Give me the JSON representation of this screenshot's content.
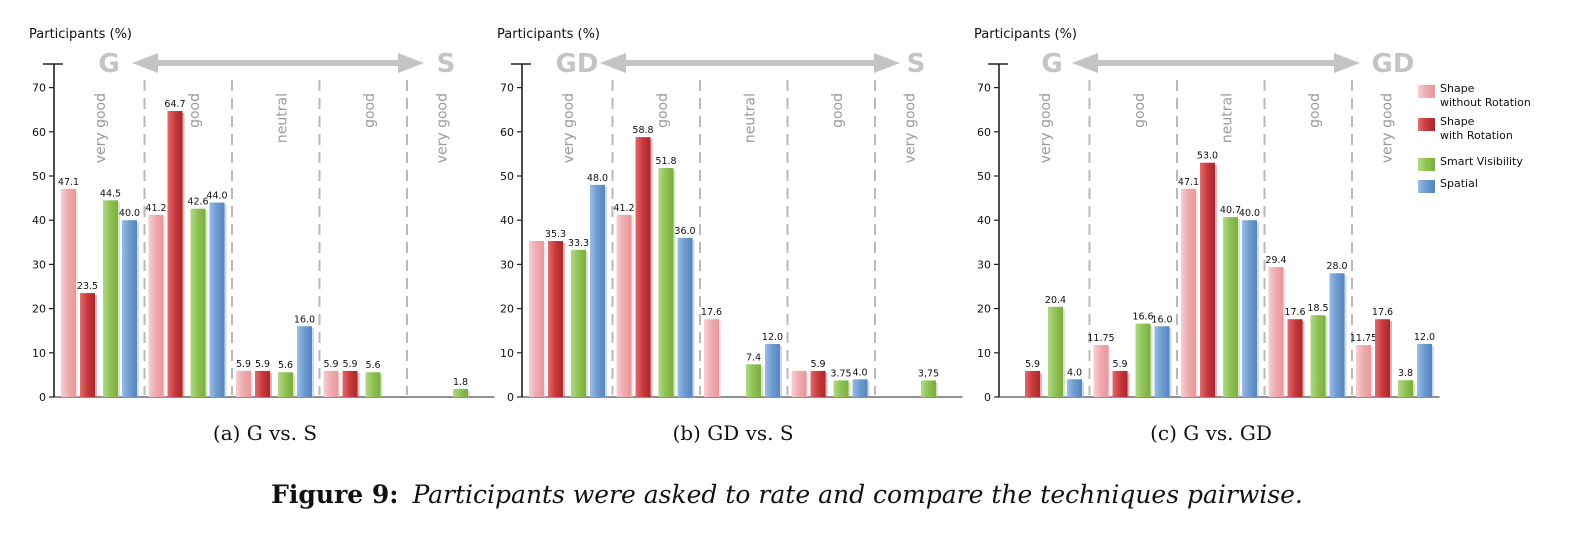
{
  "figure": {
    "caption_label": "Figure 9:",
    "caption_text": "Participants were asked to rate and compare the techniques pairwise."
  },
  "legend": {
    "placement": "right",
    "entries": [
      {
        "lines": [
          "Shape",
          "without Rotation"
        ],
        "series": 0
      },
      {
        "lines": [
          "Shape",
          "with Rotation"
        ],
        "series": 1
      },
      {
        "lines": [
          "Smart Visibility"
        ],
        "series": 2
      },
      {
        "lines": [
          "Spatial"
        ],
        "series": 3
      }
    ]
  },
  "colors": {
    "shape_without_rotation": "#eeaaaf",
    "shape_with_rotation": "#c8383c",
    "smart_visibility": "#8fc152",
    "spatial": "#6c9ad0",
    "grey_label": "#c4c4c4",
    "divider": "#b9b9b9"
  },
  "chart_data": [
    {
      "type": "bar",
      "subcaption": "(a)  G vs. S",
      "ylabel": "Participants (%)",
      "ylim": [
        0,
        75
      ],
      "yticks": [
        "0",
        "10",
        "20",
        "30",
        "40",
        "50",
        "60",
        "70"
      ],
      "arrow_left": "G",
      "arrow_right": "S",
      "categories": [
        "very good",
        "good",
        "neutral",
        "good",
        "very good"
      ],
      "series": [
        {
          "values": [
            47.1,
            41.2,
            5.9,
            5.9,
            null
          ],
          "labels": [
            "47.1",
            "41.2",
            "5.9",
            "5.9",
            ""
          ]
        },
        {
          "values": [
            23.5,
            64.7,
            5.9,
            5.9,
            null
          ],
          "labels": [
            "23.5",
            "64.7",
            "5.9",
            "5.9",
            ""
          ]
        },
        {
          "values": [
            44.5,
            42.6,
            5.6,
            5.6,
            1.8
          ],
          "labels": [
            "44.5",
            "42.6",
            "5.6",
            "5.6",
            "1.8"
          ]
        },
        {
          "values": [
            40.0,
            44.0,
            16.0,
            null,
            null
          ],
          "labels": [
            "40.0",
            "44.0",
            "16.0",
            "",
            ""
          ]
        }
      ]
    },
    {
      "type": "bar",
      "subcaption": "(b)  GD vs. S",
      "ylabel": "Participants (%)",
      "ylim": [
        0,
        75
      ],
      "yticks": [
        "0",
        "10",
        "20",
        "30",
        "40",
        "50",
        "60",
        "70"
      ],
      "arrow_left": "GD",
      "arrow_right": "S",
      "categories": [
        "very good",
        "good",
        "neutral",
        "good",
        "very good"
      ],
      "series": [
        {
          "values": [
            35.3,
            41.2,
            17.6,
            5.9,
            null
          ],
          "labels": [
            "",
            "41.2",
            "17.6",
            "",
            ""
          ]
        },
        {
          "values": [
            35.3,
            58.8,
            null,
            5.9,
            null
          ],
          "labels": [
            "35.3",
            "58.8",
            "",
            "5.9",
            ""
          ]
        },
        {
          "values": [
            33.3,
            51.8,
            7.4,
            3.75,
            3.75
          ],
          "labels": [
            "33.3",
            "51.8",
            "7.4",
            "3.75",
            "3,75"
          ]
        },
        {
          "values": [
            48.0,
            36.0,
            12.0,
            4.0,
            null
          ],
          "labels": [
            "48.0",
            "36.0",
            "12.0",
            "4.0",
            ""
          ]
        }
      ]
    },
    {
      "type": "bar",
      "subcaption": "(c)  G vs. GD",
      "ylabel": "Participants (%)",
      "ylim": [
        0,
        75
      ],
      "yticks": [
        "0",
        "10",
        "20",
        "30",
        "40",
        "50",
        "60",
        "70"
      ],
      "arrow_left": "G",
      "arrow_right": "GD",
      "categories": [
        "very good",
        "good",
        "neutral",
        "good",
        "very good"
      ],
      "series": [
        {
          "values": [
            null,
            11.75,
            47.1,
            29.4,
            11.75
          ],
          "labels": [
            "",
            "11.75",
            "47.1",
            "29.4",
            "11.75"
          ]
        },
        {
          "values": [
            5.9,
            5.9,
            53.0,
            17.6,
            17.6
          ],
          "labels": [
            "5.9",
            "5.9",
            "53.0",
            "17.6",
            "17.6"
          ]
        },
        {
          "values": [
            20.4,
            16.6,
            40.7,
            18.5,
            3.8
          ],
          "labels": [
            "20.4",
            "16.6",
            "40.7",
            "18.5",
            "3.8"
          ]
        },
        {
          "values": [
            4.0,
            16.0,
            40.0,
            28.0,
            12.0
          ],
          "labels": [
            "4.0",
            "16.0",
            "40.0",
            "28.0",
            "12.0"
          ]
        }
      ]
    }
  ]
}
